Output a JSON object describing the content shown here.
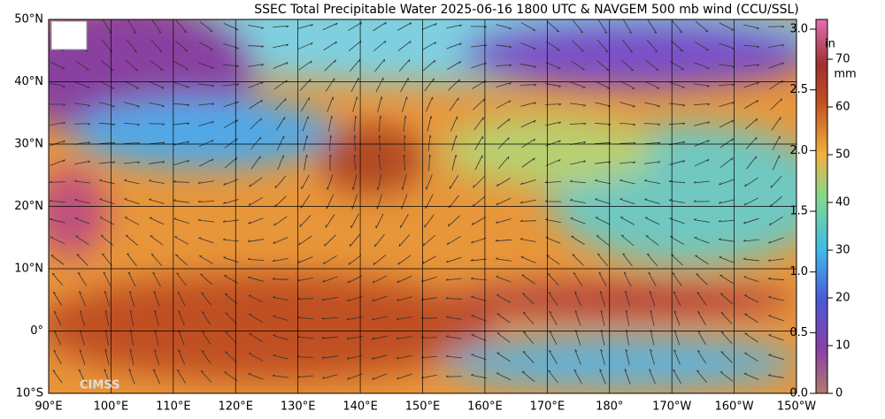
{
  "title": "SSEC Total Precipitable Water  2025-06-16 1800 UTC & NAVGEM 500 mb wind (CCU/SSL)",
  "lat_labels": [
    "50°N",
    "40°N",
    "30°N",
    "20°N",
    "10°N",
    "0°",
    "10°S"
  ],
  "lon_labels": [
    "90°E",
    "100°E",
    "110°E",
    "120°E",
    "130°E",
    "140°E",
    "150°E",
    "160°E",
    "170°E",
    "180°",
    "170°W",
    "160°W",
    "150°W"
  ],
  "colorbar": {
    "in_unit": "in",
    "mm_unit": "mm",
    "in_ticks": [
      "3.0",
      "2.5",
      "2.0",
      "1.5",
      "1.0",
      "0.5",
      "0.0"
    ],
    "mm_ticks": [
      "70",
      "60",
      "50",
      "40",
      "30",
      "20",
      "10",
      "0"
    ]
  },
  "logo": "CIMSS"
}
